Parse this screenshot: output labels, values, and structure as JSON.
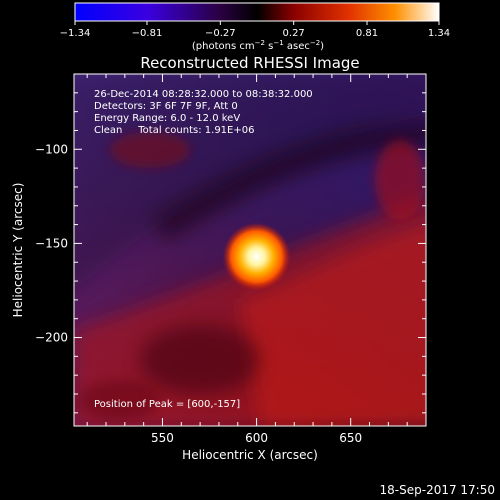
{
  "chart_data": {
    "type": "heatmap",
    "title": "Reconstructed RHESSI Image",
    "xlabel": "Heliocentric X (arcsec)",
    "ylabel": "Heliocentric Y (arcsec)",
    "xlim": [
      503,
      690
    ],
    "ylim": [
      -247,
      -60
    ],
    "x_ticks": [
      550,
      600,
      650
    ],
    "x_tick_labels": [
      "550",
      "600",
      "650"
    ],
    "y_ticks": [
      -100,
      -150,
      -200
    ],
    "y_tick_labels": [
      "−100",
      "−150",
      "−200"
    ],
    "colorbar": {
      "range": [
        -1.34,
        1.34
      ],
      "ticks": [
        -1.34,
        -0.81,
        -0.27,
        0.27,
        0.81,
        1.34
      ],
      "tick_labels": [
        "−1.34",
        "−0.81",
        "−0.27",
        "0.27",
        "0.81",
        "1.34"
      ],
      "units_prefix": "(photons cm",
      "units_sup1": "−2",
      "units_mid": " s",
      "units_sup2": "−1",
      "units_mid2": " asec",
      "units_sup3": "−2",
      "units_suffix": ")",
      "colors": [
        "#0000ff",
        "#5a00c0",
        "#000000",
        "#cc0000",
        "#ff8a00",
        "#ffffff"
      ]
    },
    "annotations": [
      "26-Dec-2014 08:28:32.000 to 08:38:32.000",
      "Detectors: 3F 6F 7F 9F, Att 0",
      "Energy Range: 6.0 - 12.0 keV",
      "Clean     Total counts: 1.91E+06"
    ],
    "peak_label": "Position of Peak = [600,-157]",
    "peak": {
      "x": 600,
      "y": -157
    },
    "timestamp": "18-Sep-2017 17:50"
  }
}
